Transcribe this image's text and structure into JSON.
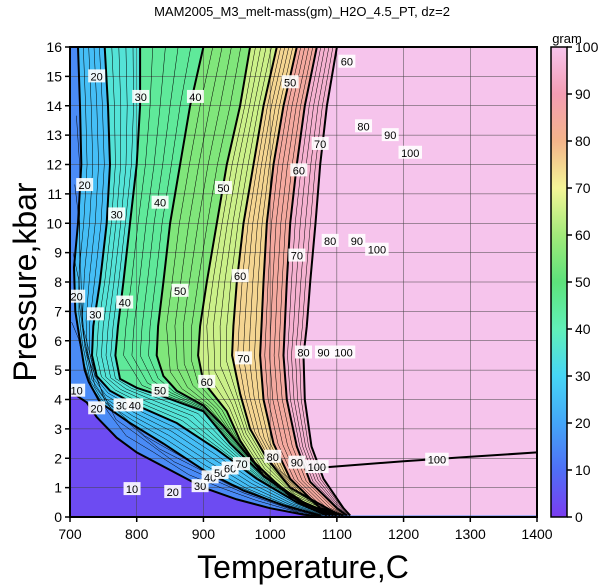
{
  "chart_data": {
    "type": "heatmap",
    "title": "MAM2005_M3_melt-mass(gm)_H2O_4.5_PT, dz=2",
    "xlabel": "Temperature,C",
    "ylabel": "Pressure,kbar",
    "xlim": [
      700,
      1400
    ],
    "ylim": [
      0,
      16
    ],
    "xticks": [
      700,
      800,
      900,
      1000,
      1100,
      1200,
      1300,
      1400
    ],
    "yticks": [
      0,
      1,
      2,
      3,
      4,
      5,
      6,
      7,
      8,
      9,
      10,
      11,
      12,
      13,
      14,
      15,
      16
    ],
    "grid": true,
    "colorbar": {
      "label": "gram",
      "range": [
        0,
        100
      ],
      "ticks": [
        0,
        10,
        20,
        30,
        40,
        50,
        60,
        70,
        80,
        90,
        100
      ],
      "stops": [
        [
          0,
          "#7a3cf0"
        ],
        [
          10,
          "#4f6ff5"
        ],
        [
          20,
          "#44a6f7"
        ],
        [
          30,
          "#46d6f5"
        ],
        [
          40,
          "#61f0b8"
        ],
        [
          50,
          "#5de27b"
        ],
        [
          60,
          "#a2ea7a"
        ],
        [
          70,
          "#f4f597"
        ],
        [
          80,
          "#f4b48a"
        ],
        [
          90,
          "#f49db3"
        ],
        [
          100,
          "#f6c4ec"
        ]
      ]
    },
    "contours": [
      {
        "level": 10,
        "points": [
          [
            700,
            4.3
          ],
          [
            712,
            4.1
          ],
          [
            725,
            3.9
          ],
          [
            740,
            3.4
          ],
          [
            770,
            2.7
          ],
          [
            800,
            2.2
          ],
          [
            850,
            1.6
          ],
          [
            900,
            1.0
          ],
          [
            950,
            0.6
          ],
          [
            1000,
            0.3
          ],
          [
            1050,
            0.08
          ],
          [
            1080,
            0.0
          ]
        ]
      },
      {
        "level": 20,
        "points": [
          [
            712,
            16
          ],
          [
            715,
            14
          ],
          [
            717,
            12
          ],
          [
            712,
            10
          ],
          [
            706,
            8.5
          ],
          [
            708,
            7
          ],
          [
            715,
            6
          ],
          [
            722,
            5
          ],
          [
            728,
            4.6
          ],
          [
            745,
            3.9
          ],
          [
            790,
            3.2
          ],
          [
            840,
            2.5
          ],
          [
            900,
            1.6
          ],
          [
            960,
            0.9
          ],
          [
            1020,
            0.4
          ],
          [
            1075,
            0.05
          ]
        ]
      },
      {
        "level": 30,
        "points": [
          [
            752,
            16
          ],
          [
            757,
            14
          ],
          [
            760,
            12
          ],
          [
            755,
            10
          ],
          [
            745,
            8
          ],
          [
            735,
            6.5
          ],
          [
            733,
            5.5
          ],
          [
            740,
            4.8
          ],
          [
            760,
            4.3
          ],
          [
            800,
            3.8
          ],
          [
            860,
            3.2
          ],
          [
            920,
            2.3
          ],
          [
            980,
            1.3
          ],
          [
            1040,
            0.5
          ],
          [
            1085,
            0.05
          ]
        ]
      },
      {
        "level": 40,
        "points": [
          [
            805,
            16
          ],
          [
            805,
            14
          ],
          [
            800,
            12
          ],
          [
            790,
            10
          ],
          [
            780,
            8
          ],
          [
            772,
            6.5
          ],
          [
            768,
            5.5
          ],
          [
            775,
            4.7
          ],
          [
            800,
            4.4
          ],
          [
            840,
            4.1
          ],
          [
            900,
            3.6
          ],
          [
            940,
            2.5
          ],
          [
            990,
            1.4
          ],
          [
            1050,
            0.5
          ],
          [
            1090,
            0.05
          ]
        ]
      },
      {
        "level": 50,
        "points": [
          [
            900,
            16
          ],
          [
            880,
            14
          ],
          [
            865,
            12
          ],
          [
            850,
            10
          ],
          [
            840,
            8
          ],
          [
            832,
            6.5
          ],
          [
            830,
            5.5
          ],
          [
            840,
            4.8
          ],
          [
            860,
            4.3
          ],
          [
            900,
            3.8
          ],
          [
            930,
            3.1
          ],
          [
            970,
            2.0
          ],
          [
            1030,
            0.7
          ],
          [
            1095,
            0.05
          ]
        ]
      },
      {
        "level": 60,
        "points": [
          [
            970,
            16
          ],
          [
            955,
            14
          ],
          [
            935,
            12
          ],
          [
            920,
            10
          ],
          [
            905,
            8
          ],
          [
            895,
            6.5
          ],
          [
            892,
            5.5
          ],
          [
            900,
            4.6
          ],
          [
            935,
            3.6
          ],
          [
            955,
            2.6
          ],
          [
            990,
            1.4
          ],
          [
            1045,
            0.5
          ],
          [
            1100,
            0.05
          ]
        ]
      },
      {
        "level": 70,
        "points": [
          [
            1010,
            16
          ],
          [
            990,
            14
          ],
          [
            975,
            12
          ],
          [
            960,
            10
          ],
          [
            950,
            8
          ],
          [
            945,
            6.5
          ],
          [
            943,
            5.5
          ],
          [
            955,
            4.2
          ],
          [
            970,
            3.0
          ],
          [
            995,
            2.0
          ],
          [
            1030,
            1.0
          ],
          [
            1105,
            0.05
          ]
        ]
      },
      {
        "level": 80,
        "points": [
          [
            1040,
            16
          ],
          [
            1020,
            14
          ],
          [
            1005,
            12
          ],
          [
            995,
            10
          ],
          [
            990,
            8
          ],
          [
            987,
            6.5
          ],
          [
            985,
            5.5
          ],
          [
            990,
            4.0
          ],
          [
            1005,
            2.5
          ],
          [
            1030,
            1.3
          ],
          [
            1075,
            0.3
          ],
          [
            1110,
            0.05
          ]
        ]
      },
      {
        "level": 90,
        "points": [
          [
            1070,
            16
          ],
          [
            1052,
            14
          ],
          [
            1040,
            12
          ],
          [
            1030,
            10
          ],
          [
            1025,
            8
          ],
          [
            1022,
            6.5
          ],
          [
            1020,
            5.5
          ],
          [
            1025,
            4.0
          ],
          [
            1040,
            2.4
          ],
          [
            1060,
            1.2
          ],
          [
            1100,
            0.3
          ],
          [
            1115,
            0.05
          ]
        ]
      },
      {
        "level": 100,
        "points": [
          [
            1100,
            16
          ],
          [
            1085,
            14
          ],
          [
            1075,
            12
          ],
          [
            1068,
            10
          ],
          [
            1060,
            8
          ],
          [
            1055,
            6.5
          ],
          [
            1050,
            5.5
          ],
          [
            1052,
            4.0
          ],
          [
            1062,
            2.4
          ],
          [
            1080,
            1.3
          ],
          [
            1110,
            0.3
          ],
          [
            1120,
            0.05
          ]
        ]
      },
      {
        "level": 100,
        "points": [
          [
            1060,
            1.65
          ],
          [
            1200,
            1.9
          ],
          [
            1300,
            2.05
          ],
          [
            1400,
            2.2
          ]
        ]
      }
    ],
    "contour_labels": [
      {
        "text": "20",
        "x": 740,
        "y": 15.0
      },
      {
        "text": "30",
        "x": 806,
        "y": 14.3
      },
      {
        "text": "40",
        "x": 888,
        "y": 14.3
      },
      {
        "text": "50",
        "x": 1030,
        "y": 14.8
      },
      {
        "text": "60",
        "x": 1115,
        "y": 15.5
      },
      {
        "text": "20",
        "x": 722,
        "y": 11.3
      },
      {
        "text": "30",
        "x": 770,
        "y": 10.3
      },
      {
        "text": "40",
        "x": 835,
        "y": 10.7
      },
      {
        "text": "50",
        "x": 930,
        "y": 11.2
      },
      {
        "text": "60",
        "x": 1043,
        "y": 11.8
      },
      {
        "text": "70",
        "x": 1075,
        "y": 12.7
      },
      {
        "text": "80",
        "x": 1140,
        "y": 13.3
      },
      {
        "text": "90",
        "x": 1180,
        "y": 13.0
      },
      {
        "text": "100",
        "x": 1210,
        "y": 12.4
      },
      {
        "text": "20",
        "x": 710,
        "y": 7.5
      },
      {
        "text": "30",
        "x": 738,
        "y": 6.9
      },
      {
        "text": "40",
        "x": 782,
        "y": 7.3
      },
      {
        "text": "50",
        "x": 865,
        "y": 7.7
      },
      {
        "text": "60",
        "x": 955,
        "y": 8.2
      },
      {
        "text": "70",
        "x": 1040,
        "y": 8.9
      },
      {
        "text": "80",
        "x": 1090,
        "y": 9.4
      },
      {
        "text": "90",
        "x": 1130,
        "y": 9.4
      },
      {
        "text": "100",
        "x": 1160,
        "y": 9.1
      },
      {
        "text": "50",
        "x": 835,
        "y": 4.3
      },
      {
        "text": "60",
        "x": 905,
        "y": 4.6
      },
      {
        "text": "70",
        "x": 960,
        "y": 5.4
      },
      {
        "text": "80",
        "x": 1050,
        "y": 5.6
      },
      {
        "text": "90",
        "x": 1080,
        "y": 5.6
      },
      {
        "text": "100",
        "x": 1110,
        "y": 5.6
      },
      {
        "text": "10",
        "x": 710,
        "y": 4.3
      },
      {
        "text": "20",
        "x": 740,
        "y": 3.7
      },
      {
        "text": "30",
        "x": 778,
        "y": 3.8
      },
      {
        "text": "40",
        "x": 797,
        "y": 3.8
      },
      {
        "text": "10",
        "x": 793,
        "y": 0.95
      },
      {
        "text": "20",
        "x": 854,
        "y": 0.85
      },
      {
        "text": "30",
        "x": 895,
        "y": 1.05
      },
      {
        "text": "40",
        "x": 910,
        "y": 1.35
      },
      {
        "text": "50",
        "x": 925,
        "y": 1.5
      },
      {
        "text": "60",
        "x": 940,
        "y": 1.65
      },
      {
        "text": "70",
        "x": 957,
        "y": 1.8
      },
      {
        "text": "80",
        "x": 1004,
        "y": 2.05
      },
      {
        "text": "90",
        "x": 1040,
        "y": 1.85
      },
      {
        "text": "100",
        "x": 1070,
        "y": 1.7
      },
      {
        "text": "100",
        "x": 1250,
        "y": 1.95
      }
    ]
  }
}
